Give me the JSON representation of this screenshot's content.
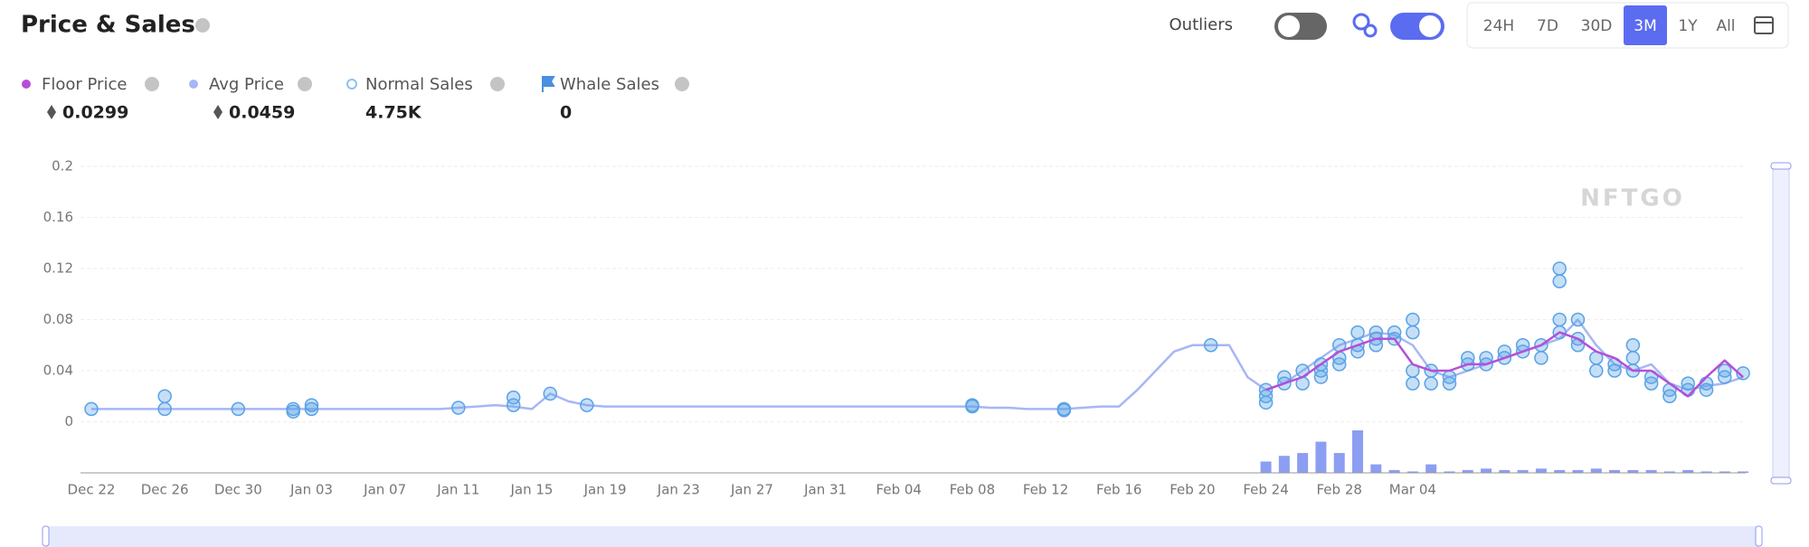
{
  "header": {
    "title": "Price & Sales",
    "outliers_label": "Outliers",
    "ranges": [
      "24H",
      "7D",
      "30D",
      "3M",
      "1Y",
      "All"
    ],
    "active_range": 3
  },
  "stats": [
    0.0299,
    0.0459,
    "4.75K",
    0
  ],
  "chart_data": {
    "type": "line",
    "watermark": "NFTGO",
    "categories": [
      "Dec 22",
      null,
      null,
      null,
      "Dec 26",
      null,
      null,
      null,
      "Dec 30",
      null,
      null,
      null,
      "Jan 03",
      null,
      null,
      null,
      "Jan 07",
      null,
      null,
      null,
      "Jan 11",
      null,
      null,
      null,
      "Jan 15",
      null,
      null,
      null,
      "Jan 19",
      null,
      null,
      null,
      "Jan 23",
      null,
      null,
      null,
      "Jan 27",
      null,
      null,
      null,
      "Jan 31",
      null,
      null,
      null,
      "Feb 04",
      null,
      null,
      null,
      "Feb 08",
      null,
      null,
      null,
      "Feb 12",
      null,
      null,
      null,
      "Feb 16",
      null,
      null,
      null,
      "Feb 20",
      null,
      null,
      null,
      "Feb 24",
      null,
      null,
      null,
      "Feb 28",
      null,
      null,
      null,
      "Mar 04",
      null,
      null,
      null,
      null,
      null,
      null,
      null,
      null,
      null,
      null,
      null,
      null,
      null,
      null,
      null,
      null,
      null,
      null
    ],
    "ylim": [
      -0.04,
      0.2
    ],
    "yticks": [
      0,
      0.04,
      0.08,
      0.12,
      0.16,
      0.2
    ],
    "grid": true,
    "series": [
      {
        "name": "Floor Price",
        "color": "#b54fd8",
        "values": [
          null,
          null,
          null,
          null,
          null,
          null,
          null,
          null,
          null,
          null,
          null,
          null,
          null,
          null,
          null,
          null,
          null,
          null,
          null,
          null,
          null,
          null,
          null,
          null,
          null,
          null,
          null,
          null,
          null,
          null,
          null,
          null,
          null,
          null,
          null,
          null,
          null,
          null,
          null,
          null,
          null,
          null,
          null,
          null,
          null,
          null,
          null,
          null,
          null,
          null,
          null,
          null,
          null,
          null,
          null,
          null,
          null,
          null,
          null,
          null,
          null,
          null,
          null,
          null,
          0.025,
          0.03,
          0.035,
          0.045,
          0.055,
          0.06,
          0.065,
          0.065,
          0.045,
          0.04,
          0.04,
          0.045,
          0.045,
          0.05,
          0.055,
          0.06,
          0.07,
          0.065,
          0.055,
          0.05,
          0.04,
          0.04,
          0.03,
          0.02,
          0.035,
          0.048,
          0.035
        ]
      },
      {
        "name": "Avg Price",
        "color": "#a7b6f6",
        "values": [
          0.01,
          0.01,
          0.01,
          0.01,
          0.01,
          0.01,
          0.01,
          0.01,
          0.01,
          0.01,
          0.01,
          0.01,
          0.01,
          0.01,
          0.01,
          0.01,
          0.01,
          0.01,
          0.01,
          0.01,
          0.011,
          0.012,
          0.013,
          0.012,
          0.01,
          0.022,
          0.016,
          0.013,
          0.012,
          0.012,
          0.012,
          0.012,
          0.012,
          0.012,
          0.012,
          0.012,
          0.012,
          0.012,
          0.012,
          0.012,
          0.012,
          0.012,
          0.012,
          0.012,
          0.012,
          0.012,
          0.012,
          0.012,
          0.012,
          0.011,
          0.011,
          0.01,
          0.01,
          0.01,
          0.011,
          0.012,
          0.012,
          0.025,
          0.04,
          0.055,
          0.06,
          0.06,
          0.06,
          0.035,
          0.025,
          0.03,
          0.04,
          0.05,
          0.06,
          0.065,
          0.07,
          0.068,
          0.06,
          0.04,
          0.035,
          0.04,
          0.045,
          0.05,
          0.055,
          0.06,
          0.065,
          0.08,
          0.06,
          0.045,
          0.04,
          0.045,
          0.03,
          0.025,
          0.028,
          0.03,
          0.035
        ]
      }
    ],
    "sales": {
      "name": "Normal Sales",
      "color": "#5aa2e6",
      "values": [
        [
          0.01
        ],
        null,
        null,
        null,
        [
          0.01,
          0.02
        ],
        null,
        null,
        null,
        [
          0.01
        ],
        null,
        null,
        [
          0.01,
          0.008
        ],
        [
          0.01,
          0.013
        ],
        null,
        null,
        null,
        null,
        null,
        null,
        null,
        [
          0.011
        ],
        null,
        null,
        [
          0.013,
          0.019
        ],
        null,
        [
          0.022
        ],
        null,
        [
          0.013
        ],
        null,
        null,
        null,
        null,
        null,
        null,
        null,
        null,
        null,
        null,
        null,
        null,
        null,
        null,
        null,
        null,
        null,
        null,
        null,
        null,
        [
          0.013,
          0.012
        ],
        null,
        null,
        null,
        null,
        [
          0.01,
          0.009
        ],
        null,
        null,
        null,
        null,
        null,
        null,
        null,
        [
          0.06
        ],
        null,
        null,
        [
          0.015,
          0.02,
          0.025
        ],
        [
          0.03,
          0.035
        ],
        [
          0.03,
          0.04
        ],
        [
          0.04,
          0.035,
          0.045
        ],
        [
          0.05,
          0.045,
          0.06
        ],
        [
          0.055,
          0.06,
          0.07
        ],
        [
          0.065,
          0.07,
          0.06
        ],
        [
          0.07,
          0.065
        ],
        [
          0.07,
          0.08,
          0.03,
          0.04
        ],
        [
          0.04,
          0.03
        ],
        [
          0.035,
          0.03
        ],
        [
          0.045,
          0.05
        ],
        [
          0.05,
          0.045
        ],
        [
          0.055,
          0.05
        ],
        [
          0.06,
          0.055
        ],
        [
          0.06,
          0.05
        ],
        [
          0.12,
          0.11,
          0.08,
          0.07
        ],
        [
          0.065,
          0.08,
          0.06
        ],
        [
          0.05,
          0.04
        ],
        [
          0.04,
          0.045
        ],
        [
          0.05,
          0.04,
          0.06
        ],
        [
          0.03,
          0.035
        ],
        [
          0.025,
          0.02
        ],
        [
          0.03,
          0.025
        ],
        [
          0.03,
          0.025
        ],
        [
          0.04,
          0.035
        ],
        [
          0.038
        ]
      ]
    },
    "whale": {
      "name": "Whale Sales",
      "color": "#4a8fe0"
    },
    "volume": {
      "color": "#8c9ef2",
      "values": [
        null,
        null,
        null,
        null,
        null,
        null,
        null,
        null,
        null,
        null,
        null,
        null,
        null,
        null,
        null,
        null,
        null,
        null,
        null,
        null,
        null,
        null,
        null,
        null,
        null,
        null,
        null,
        null,
        null,
        null,
        null,
        null,
        null,
        null,
        null,
        null,
        null,
        null,
        null,
        null,
        null,
        null,
        null,
        null,
        null,
        null,
        null,
        null,
        null,
        null,
        null,
        null,
        null,
        null,
        null,
        null,
        null,
        null,
        null,
        null,
        null,
        null,
        null,
        null,
        8,
        12,
        14,
        22,
        14,
        30,
        6,
        2,
        1,
        6,
        1,
        2,
        3,
        2,
        2,
        3,
        2,
        2,
        3,
        2,
        2,
        2,
        1,
        2,
        1,
        1,
        1
      ]
    }
  }
}
